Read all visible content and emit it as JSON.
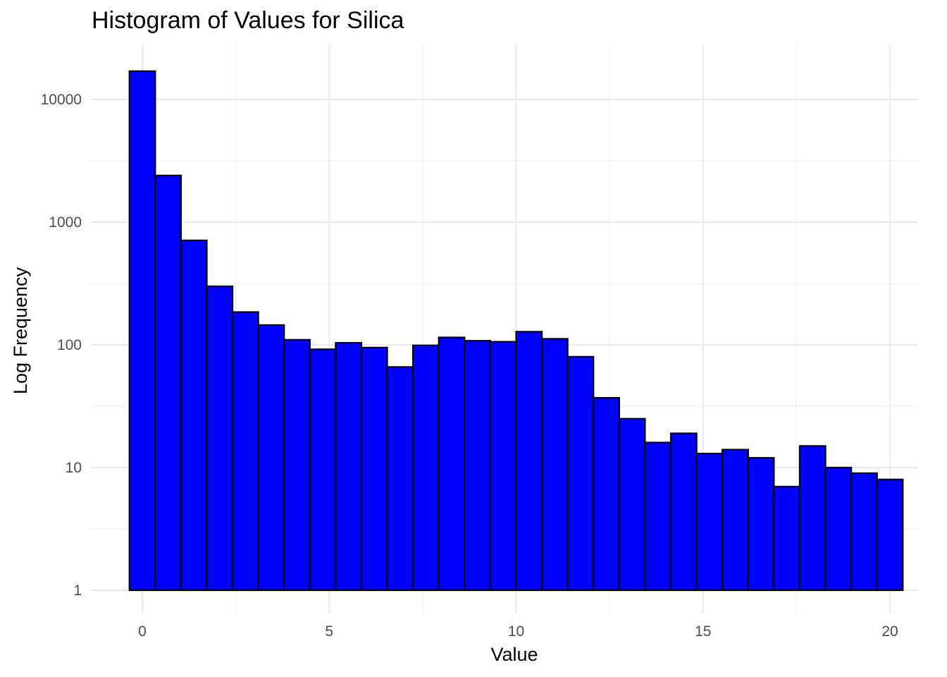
{
  "chart_data": {
    "type": "bar",
    "title": "Histogram of Values for Silica",
    "xlabel": "Value",
    "ylabel": "Log Frequency",
    "y_scale": "log10",
    "ylim": [
      0.6,
      20000
    ],
    "xlim": [
      -1.4,
      21.2
    ],
    "grid": true,
    "legend": "none",
    "bar_fill": "#0000ff",
    "bar_outline": "#000000",
    "x_ticks": [
      0,
      5,
      10,
      15,
      20
    ],
    "x_tick_labels": [
      "0",
      "5",
      "10",
      "15",
      "20"
    ],
    "y_ticks": [
      1,
      10,
      100,
      1000,
      10000
    ],
    "y_tick_labels": [
      "1",
      "10",
      "100",
      "1000",
      "10000"
    ],
    "bins": [
      {
        "x_min": -0.345,
        "x_max": 0.345,
        "count": 17000
      },
      {
        "x_min": 0.345,
        "x_max": 1.034,
        "count": 2400
      },
      {
        "x_min": 1.034,
        "x_max": 1.724,
        "count": 710
      },
      {
        "x_min": 1.724,
        "x_max": 2.414,
        "count": 300
      },
      {
        "x_min": 2.414,
        "x_max": 3.103,
        "count": 185
      },
      {
        "x_min": 3.103,
        "x_max": 3.793,
        "count": 145
      },
      {
        "x_min": 3.793,
        "x_max": 4.483,
        "count": 110
      },
      {
        "x_min": 4.483,
        "x_max": 5.172,
        "count": 92
      },
      {
        "x_min": 5.172,
        "x_max": 5.862,
        "count": 104
      },
      {
        "x_min": 5.862,
        "x_max": 6.552,
        "count": 95
      },
      {
        "x_min": 6.552,
        "x_max": 7.241,
        "count": 66
      },
      {
        "x_min": 7.241,
        "x_max": 7.931,
        "count": 99
      },
      {
        "x_min": 7.931,
        "x_max": 8.621,
        "count": 115
      },
      {
        "x_min": 8.621,
        "x_max": 9.31,
        "count": 108
      },
      {
        "x_min": 9.31,
        "x_max": 10.0,
        "count": 106
      },
      {
        "x_min": 10.0,
        "x_max": 10.69,
        "count": 128
      },
      {
        "x_min": 10.69,
        "x_max": 11.379,
        "count": 112
      },
      {
        "x_min": 11.379,
        "x_max": 12.069,
        "count": 80
      },
      {
        "x_min": 12.069,
        "x_max": 12.759,
        "count": 37
      },
      {
        "x_min": 12.759,
        "x_max": 13.448,
        "count": 25
      },
      {
        "x_min": 13.448,
        "x_max": 14.138,
        "count": 16
      },
      {
        "x_min": 14.138,
        "x_max": 14.828,
        "count": 19
      },
      {
        "x_min": 14.828,
        "x_max": 15.517,
        "count": 13
      },
      {
        "x_min": 15.517,
        "x_max": 16.207,
        "count": 14
      },
      {
        "x_min": 16.207,
        "x_max": 16.897,
        "count": 12
      },
      {
        "x_min": 16.897,
        "x_max": 17.586,
        "count": 7
      },
      {
        "x_min": 17.586,
        "x_max": 18.276,
        "count": 15
      },
      {
        "x_min": 18.276,
        "x_max": 18.966,
        "count": 10
      },
      {
        "x_min": 18.966,
        "x_max": 19.655,
        "count": 9
      },
      {
        "x_min": 19.655,
        "x_max": 20.345,
        "count": 8
      }
    ]
  }
}
